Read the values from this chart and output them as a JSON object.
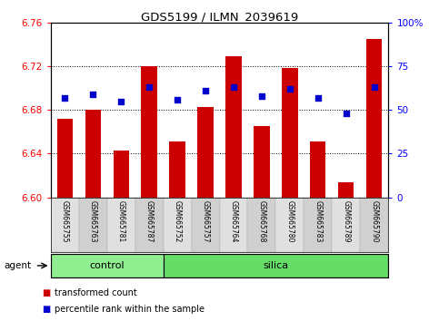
{
  "title": "GDS5199 / ILMN_2039619",
  "samples": [
    "GSM665755",
    "GSM665763",
    "GSM665781",
    "GSM665787",
    "GSM665752",
    "GSM665757",
    "GSM665764",
    "GSM665768",
    "GSM665780",
    "GSM665783",
    "GSM665789",
    "GSM665790"
  ],
  "groups": [
    "control",
    "control",
    "control",
    "control",
    "silica",
    "silica",
    "silica",
    "silica",
    "silica",
    "silica",
    "silica",
    "silica"
  ],
  "transformed_count": [
    6.672,
    6.68,
    6.643,
    6.72,
    6.651,
    6.683,
    6.729,
    6.665,
    6.718,
    6.651,
    6.614,
    6.745
  ],
  "percentile_rank": [
    57,
    59,
    55,
    63,
    56,
    61,
    63,
    58,
    62,
    57,
    48,
    63
  ],
  "bar_color": "#cc0000",
  "dot_color": "#0000cc",
  "ylim_left": [
    6.6,
    6.76
  ],
  "ylim_right": [
    0,
    100
  ],
  "yticks_left": [
    6.6,
    6.64,
    6.68,
    6.72,
    6.76
  ],
  "yticks_right": [
    0,
    25,
    50,
    75,
    100
  ],
  "ytick_labels_right": [
    "0",
    "25",
    "50",
    "75",
    "100%"
  ],
  "control_color": "#90ee90",
  "silica_color": "#66dd66",
  "bar_bottom": 6.6,
  "n_control": 4,
  "n_silica": 8,
  "agent_label": "agent",
  "legend_transformed": "transformed count",
  "legend_percentile": "percentile rank within the sample",
  "bar_width": 0.55,
  "dot_size": 18
}
